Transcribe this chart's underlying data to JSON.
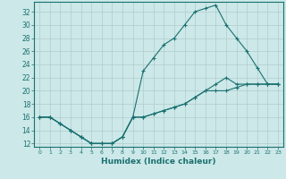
{
  "xlabel": "Humidex (Indice chaleur)",
  "bg_color": "#cce8e8",
  "line_color": "#1a7070",
  "grid_color": "#b0cccc",
  "xlim": [
    -0.5,
    23.5
  ],
  "ylim": [
    11.5,
    33.5
  ],
  "yticks": [
    12,
    14,
    16,
    18,
    20,
    22,
    24,
    26,
    28,
    30,
    32
  ],
  "xticks": [
    0,
    1,
    2,
    3,
    4,
    5,
    6,
    7,
    8,
    9,
    10,
    11,
    12,
    13,
    14,
    15,
    16,
    17,
    18,
    19,
    20,
    21,
    22,
    23
  ],
  "line1_x": [
    0,
    1,
    2,
    3,
    4,
    5,
    6,
    7,
    8,
    9,
    10,
    11,
    12,
    13,
    14,
    15,
    16,
    17,
    18,
    19,
    20,
    21,
    22,
    23
  ],
  "line1_y": [
    16,
    16,
    15,
    14,
    13,
    12,
    12,
    12,
    13,
    16,
    23,
    25,
    27,
    28,
    30,
    32,
    32.5,
    33,
    30,
    28,
    26,
    23.5,
    21,
    21
  ],
  "line2_x": [
    0,
    1,
    2,
    3,
    4,
    5,
    6,
    7,
    8,
    9,
    10,
    11,
    12,
    13,
    14,
    15,
    16,
    17,
    18,
    19,
    20,
    21,
    22,
    23
  ],
  "line2_y": [
    16,
    16,
    15,
    14,
    13,
    12,
    12,
    12,
    13,
    16,
    16,
    16.5,
    17,
    17.5,
    18,
    19,
    20,
    21,
    22,
    21,
    21,
    21,
    21,
    21
  ],
  "line3_x": [
    0,
    1,
    2,
    3,
    4,
    5,
    6,
    7,
    8,
    9,
    10,
    11,
    12,
    13,
    14,
    15,
    16,
    17,
    18,
    19,
    20,
    21,
    22,
    23
  ],
  "line3_y": [
    16,
    16,
    15,
    14,
    13,
    12,
    12,
    12,
    13,
    16,
    16,
    16.5,
    17,
    17.5,
    18,
    19,
    20,
    20,
    20,
    20.5,
    21,
    21,
    21,
    21
  ]
}
